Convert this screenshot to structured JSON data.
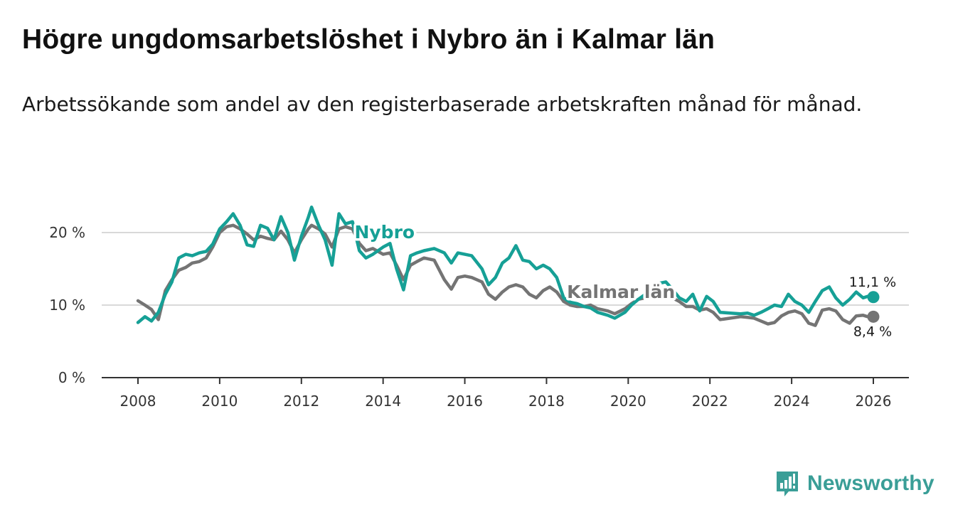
{
  "title": "Högre ungdomsarbetslöshet i Nybro än i Kalmar län",
  "subtitle": "Arbetssökande som andel av den registerbaserade arbetskraften månad för månad.",
  "brand": {
    "name": "Newsworthy",
    "icon": "bar-chart-icon",
    "color": "#3a9e97"
  },
  "colors": {
    "nybro": "#16a096",
    "kalmar": "#747474",
    "grid": "#d9d9d9",
    "axis": "#333333"
  },
  "chart_data": {
    "type": "line",
    "xlabel": "",
    "ylabel": "",
    "xlim": [
      2008,
      2026
    ],
    "ylim": [
      0,
      20
    ],
    "yticks": [
      0,
      10,
      20
    ],
    "ytick_labels": [
      "0 %",
      "10 %",
      "20 %"
    ],
    "xticks": [
      2008,
      2010,
      2012,
      2014,
      2016,
      2018,
      2020,
      2022,
      2024,
      2026
    ],
    "xtick_labels": [
      "2008",
      "2010",
      "2012",
      "2014",
      "2016",
      "2018",
      "2020",
      "2022",
      "2024",
      "2026"
    ],
    "series": [
      {
        "name": "Nybro",
        "end_label": "11,1 %",
        "points": [
          [
            2008.0,
            7.6
          ],
          [
            2008.17,
            8.4
          ],
          [
            2008.33,
            7.8
          ],
          [
            2008.5,
            9.0
          ],
          [
            2008.67,
            11.5
          ],
          [
            2008.83,
            13.2
          ],
          [
            2009.0,
            16.5
          ],
          [
            2009.17,
            17.0
          ],
          [
            2009.33,
            16.8
          ],
          [
            2009.5,
            17.2
          ],
          [
            2009.67,
            17.4
          ],
          [
            2009.83,
            18.4
          ],
          [
            2010.0,
            20.5
          ],
          [
            2010.17,
            21.5
          ],
          [
            2010.33,
            22.6
          ],
          [
            2010.5,
            21.0
          ],
          [
            2010.67,
            18.3
          ],
          [
            2010.83,
            18.1
          ],
          [
            2011.0,
            21.0
          ],
          [
            2011.17,
            20.6
          ],
          [
            2011.33,
            19.0
          ],
          [
            2011.5,
            22.2
          ],
          [
            2011.67,
            20.0
          ],
          [
            2011.83,
            16.2
          ],
          [
            2012.0,
            19.5
          ],
          [
            2012.17,
            22.1
          ],
          [
            2012.25,
            23.5
          ],
          [
            2012.42,
            21.0
          ],
          [
            2012.58,
            19.0
          ],
          [
            2012.75,
            15.5
          ],
          [
            2012.92,
            22.6
          ],
          [
            2013.08,
            21.2
          ],
          [
            2013.25,
            21.5
          ],
          [
            2013.42,
            17.5
          ],
          [
            2013.58,
            16.5
          ],
          [
            2013.75,
            17.0
          ],
          [
            2014.0,
            18.0
          ],
          [
            2014.17,
            18.5
          ],
          [
            2014.33,
            15.0
          ],
          [
            2014.5,
            12.1
          ],
          [
            2014.67,
            16.8
          ],
          [
            2014.83,
            17.2
          ],
          [
            2015.0,
            17.5
          ],
          [
            2015.25,
            17.8
          ],
          [
            2015.5,
            17.2
          ],
          [
            2015.67,
            15.8
          ],
          [
            2015.83,
            17.2
          ],
          [
            2016.0,
            17.0
          ],
          [
            2016.17,
            16.8
          ],
          [
            2016.42,
            15.0
          ],
          [
            2016.58,
            12.8
          ],
          [
            2016.75,
            13.8
          ],
          [
            2016.92,
            15.8
          ],
          [
            2017.08,
            16.5
          ],
          [
            2017.25,
            18.2
          ],
          [
            2017.42,
            16.2
          ],
          [
            2017.58,
            16.0
          ],
          [
            2017.75,
            15.0
          ],
          [
            2017.92,
            15.5
          ],
          [
            2018.08,
            15.0
          ],
          [
            2018.25,
            13.8
          ],
          [
            2018.42,
            11.0
          ],
          [
            2018.58,
            10.4
          ],
          [
            2018.75,
            10.2
          ],
          [
            2018.92,
            9.8
          ],
          [
            2019.08,
            9.6
          ],
          [
            2019.25,
            9.0
          ],
          [
            2019.5,
            8.6
          ],
          [
            2019.67,
            8.2
          ],
          [
            2019.92,
            9.0
          ],
          [
            2020.08,
            10.0
          ],
          [
            2020.25,
            10.8
          ],
          [
            2020.42,
            11.5
          ],
          [
            2020.58,
            12.5
          ],
          [
            2020.75,
            13.0
          ],
          [
            2020.92,
            13.2
          ],
          [
            2021.08,
            12.2
          ],
          [
            2021.25,
            11.0
          ],
          [
            2021.42,
            10.5
          ],
          [
            2021.58,
            11.5
          ],
          [
            2021.75,
            9.2
          ],
          [
            2021.92,
            11.2
          ],
          [
            2022.08,
            10.5
          ],
          [
            2022.25,
            9.0
          ],
          [
            2022.5,
            8.9
          ],
          [
            2022.75,
            8.8
          ],
          [
            2022.92,
            8.9
          ],
          [
            2023.08,
            8.6
          ],
          [
            2023.25,
            9.0
          ],
          [
            2023.42,
            9.5
          ],
          [
            2023.58,
            10.0
          ],
          [
            2023.75,
            9.8
          ],
          [
            2023.92,
            11.5
          ],
          [
            2024.08,
            10.5
          ],
          [
            2024.25,
            10.0
          ],
          [
            2024.42,
            9.0
          ],
          [
            2024.58,
            10.5
          ],
          [
            2024.75,
            12.0
          ],
          [
            2024.92,
            12.5
          ],
          [
            2025.08,
            11.0
          ],
          [
            2025.25,
            10.0
          ],
          [
            2025.42,
            10.8
          ],
          [
            2025.58,
            11.8
          ],
          [
            2025.75,
            11.0
          ],
          [
            2025.92,
            11.3
          ],
          [
            2026.0,
            11.1
          ]
        ]
      },
      {
        "name": "Kalmar län",
        "end_label": "8,4 %",
        "points": [
          [
            2008.0,
            10.6
          ],
          [
            2008.17,
            10.0
          ],
          [
            2008.33,
            9.4
          ],
          [
            2008.5,
            8.0
          ],
          [
            2008.67,
            12.0
          ],
          [
            2008.83,
            13.5
          ],
          [
            2009.0,
            14.8
          ],
          [
            2009.17,
            15.2
          ],
          [
            2009.33,
            15.8
          ],
          [
            2009.5,
            16.0
          ],
          [
            2009.67,
            16.5
          ],
          [
            2009.83,
            18.0
          ],
          [
            2010.0,
            20.0
          ],
          [
            2010.17,
            20.8
          ],
          [
            2010.33,
            21.0
          ],
          [
            2010.5,
            20.5
          ],
          [
            2010.67,
            19.8
          ],
          [
            2010.83,
            19.0
          ],
          [
            2011.0,
            19.5
          ],
          [
            2011.17,
            19.2
          ],
          [
            2011.33,
            19.0
          ],
          [
            2011.5,
            20.2
          ],
          [
            2011.67,
            19.0
          ],
          [
            2011.83,
            17.2
          ],
          [
            2012.0,
            19.0
          ],
          [
            2012.17,
            20.5
          ],
          [
            2012.25,
            21.0
          ],
          [
            2012.42,
            20.5
          ],
          [
            2012.58,
            19.8
          ],
          [
            2012.75,
            18.0
          ],
          [
            2012.92,
            20.5
          ],
          [
            2013.08,
            20.8
          ],
          [
            2013.25,
            20.5
          ],
          [
            2013.42,
            18.5
          ],
          [
            2013.58,
            17.5
          ],
          [
            2013.75,
            17.8
          ],
          [
            2014.0,
            17.0
          ],
          [
            2014.17,
            17.2
          ],
          [
            2014.33,
            15.5
          ],
          [
            2014.5,
            13.5
          ],
          [
            2014.67,
            15.5
          ],
          [
            2014.83,
            16.0
          ],
          [
            2015.0,
            16.5
          ],
          [
            2015.25,
            16.2
          ],
          [
            2015.5,
            13.5
          ],
          [
            2015.67,
            12.2
          ],
          [
            2015.83,
            13.8
          ],
          [
            2016.0,
            14.0
          ],
          [
            2016.17,
            13.8
          ],
          [
            2016.42,
            13.2
          ],
          [
            2016.58,
            11.5
          ],
          [
            2016.75,
            10.8
          ],
          [
            2016.92,
            11.8
          ],
          [
            2017.08,
            12.5
          ],
          [
            2017.25,
            12.8
          ],
          [
            2017.42,
            12.5
          ],
          [
            2017.58,
            11.5
          ],
          [
            2017.75,
            11.0
          ],
          [
            2017.92,
            12.0
          ],
          [
            2018.08,
            12.5
          ],
          [
            2018.25,
            11.8
          ],
          [
            2018.42,
            10.5
          ],
          [
            2018.58,
            10.0
          ],
          [
            2018.75,
            9.8
          ],
          [
            2018.92,
            9.8
          ],
          [
            2019.08,
            10.0
          ],
          [
            2019.25,
            9.5
          ],
          [
            2019.5,
            9.2
          ],
          [
            2019.67,
            8.8
          ],
          [
            2019.92,
            9.5
          ],
          [
            2020.08,
            10.2
          ],
          [
            2020.25,
            10.8
          ],
          [
            2020.42,
            11.0
          ],
          [
            2020.58,
            11.8
          ],
          [
            2020.75,
            12.0
          ],
          [
            2020.92,
            12.0
          ],
          [
            2021.08,
            11.0
          ],
          [
            2021.25,
            10.5
          ],
          [
            2021.42,
            9.8
          ],
          [
            2021.58,
            9.8
          ],
          [
            2021.75,
            9.3
          ],
          [
            2021.92,
            9.5
          ],
          [
            2022.08,
            9.0
          ],
          [
            2022.25,
            8.0
          ],
          [
            2022.5,
            8.2
          ],
          [
            2022.75,
            8.4
          ],
          [
            2022.92,
            8.3
          ],
          [
            2023.08,
            8.2
          ],
          [
            2023.25,
            7.8
          ],
          [
            2023.42,
            7.4
          ],
          [
            2023.58,
            7.6
          ],
          [
            2023.75,
            8.5
          ],
          [
            2023.92,
            9.0
          ],
          [
            2024.08,
            9.2
          ],
          [
            2024.25,
            8.8
          ],
          [
            2024.42,
            7.5
          ],
          [
            2024.58,
            7.2
          ],
          [
            2024.75,
            9.3
          ],
          [
            2024.92,
            9.5
          ],
          [
            2025.08,
            9.2
          ],
          [
            2025.25,
            8.0
          ],
          [
            2025.42,
            7.5
          ],
          [
            2025.58,
            8.5
          ],
          [
            2025.75,
            8.6
          ],
          [
            2025.92,
            8.3
          ],
          [
            2026.0,
            8.4
          ]
        ]
      }
    ],
    "series_labels": [
      {
        "text": "Nybro",
        "series": "Nybro",
        "x": 2013.3,
        "y": 19.2
      },
      {
        "text": "Kalmar län",
        "series": "Kalmar län",
        "x": 2018.5,
        "y": 11.0
      }
    ]
  }
}
